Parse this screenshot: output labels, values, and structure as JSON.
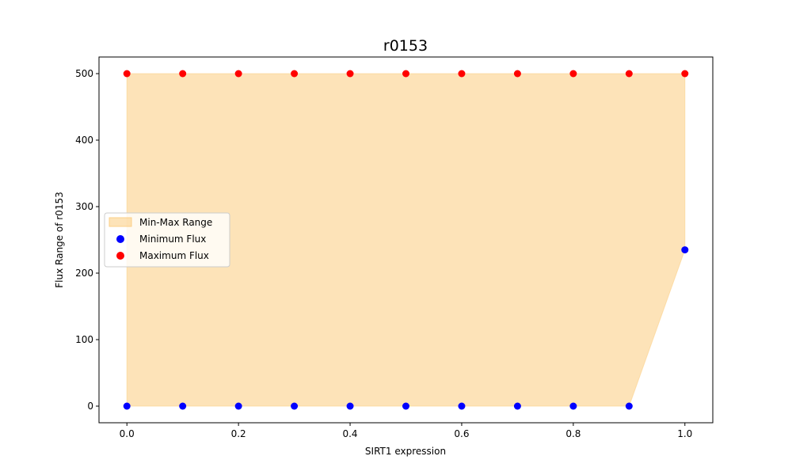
{
  "chart_data": {
    "type": "scatter",
    "title": "r0153",
    "xlabel": "SIRT1 expression",
    "ylabel": "Flux Range of r0153",
    "xlim": [
      -0.05,
      1.05
    ],
    "ylim": [
      -25,
      525
    ],
    "x_ticks": [
      0.0,
      0.2,
      0.4,
      0.6,
      0.8,
      1.0
    ],
    "x_tick_labels": [
      "0.0",
      "0.2",
      "0.4",
      "0.6",
      "0.8",
      "1.0"
    ],
    "y_ticks": [
      0,
      100,
      200,
      300,
      400,
      500
    ],
    "y_tick_labels": [
      "0",
      "100",
      "200",
      "300",
      "400",
      "500"
    ],
    "x": [
      0.0,
      0.1,
      0.2,
      0.3,
      0.4,
      0.5,
      0.6,
      0.7,
      0.8,
      0.9,
      1.0
    ],
    "series": [
      {
        "name": "Minimum Flux",
        "color": "#0000ff",
        "values": [
          0,
          0,
          0,
          0,
          0,
          0,
          0,
          0,
          0,
          0,
          235
        ]
      },
      {
        "name": "Maximum Flux",
        "color": "#ff0000",
        "values": [
          500,
          500,
          500,
          500,
          500,
          500,
          500,
          500,
          500,
          500,
          500
        ]
      }
    ],
    "fill": {
      "name": "Min-Max Range",
      "color": "#fcd088",
      "opacity": 0.6
    },
    "legend": {
      "position": "center-left",
      "entries": [
        "Min-Max Range",
        "Minimum Flux",
        "Maximum Flux"
      ]
    },
    "grid": false
  }
}
